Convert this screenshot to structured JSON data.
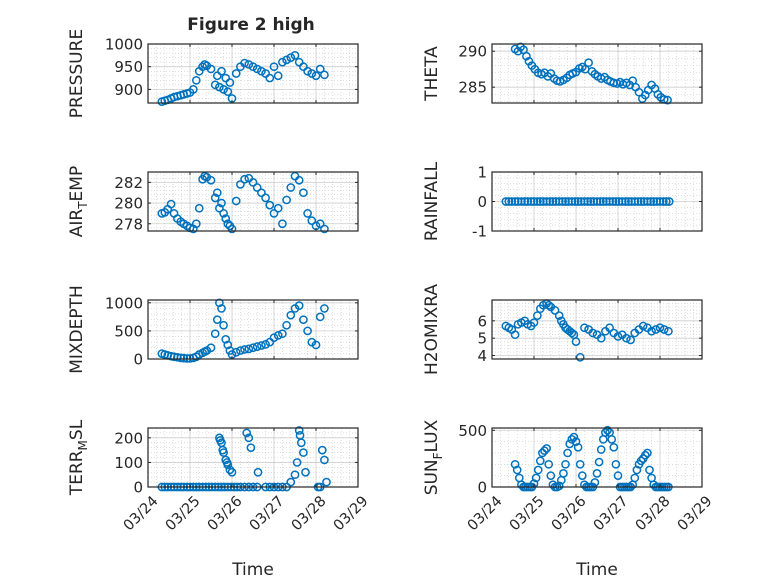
{
  "figure": {
    "title": "Figure 2 high",
    "colors": {
      "marker": "#0072BD",
      "axis": "#262626",
      "grid": "#b9b9b9",
      "background": "#ffffff"
    },
    "marker_shape": "open-circle"
  },
  "chart_data": [
    {
      "type": "scatter",
      "ylabel": "PRESSURE",
      "xlabel": "",
      "xlim": [
        0,
        5
      ],
      "ylim": [
        870,
        1000
      ],
      "yticks": [
        900,
        950,
        1000
      ],
      "ytick_labels": [
        "900",
        "950",
        "1000"
      ],
      "xticks": [
        0,
        1,
        2,
        3,
        4,
        5
      ],
      "xtick_labels": [],
      "grid": true,
      "x": [
        0.33,
        0.4,
        0.47,
        0.55,
        0.62,
        0.7,
        0.78,
        0.85,
        0.93,
        1.0,
        1.08,
        1.15,
        1.22,
        1.3,
        1.35,
        1.4,
        1.5,
        1.6,
        1.65,
        1.7,
        1.75,
        1.8,
        1.85,
        1.9,
        1.95,
        2.0,
        2.1,
        2.2,
        2.3,
        2.4,
        2.5,
        2.6,
        2.7,
        2.8,
        2.9,
        3.0,
        3.1,
        3.2,
        3.3,
        3.4,
        3.5,
        3.6,
        3.7,
        3.8,
        3.9,
        4.0,
        4.1,
        4.2
      ],
      "y": [
        873,
        875,
        877,
        880,
        883,
        885,
        887,
        889,
        891,
        893,
        900,
        920,
        940,
        950,
        955,
        952,
        945,
        910,
        930,
        905,
        940,
        900,
        925,
        895,
        915,
        880,
        935,
        950,
        958,
        955,
        950,
        945,
        940,
        935,
        925,
        950,
        930,
        960,
        965,
        970,
        975,
        960,
        950,
        940,
        935,
        930,
        945,
        932
      ]
    },
    {
      "type": "scatter",
      "ylabel": "THETA",
      "xlabel": "",
      "xlim": [
        0,
        5
      ],
      "ylim": [
        282.8,
        291
      ],
      "yticks": [
        285,
        290
      ],
      "ytick_labels": [
        "285",
        "290"
      ],
      "xticks": [
        0,
        1,
        2,
        3,
        4,
        5
      ],
      "xtick_labels": [],
      "grid": true,
      "x": [
        0.55,
        0.62,
        0.68,
        0.75,
        0.82,
        0.88,
        0.95,
        1.02,
        1.1,
        1.18,
        1.25,
        1.33,
        1.4,
        1.48,
        1.55,
        1.62,
        1.7,
        1.78,
        1.85,
        1.92,
        2.0,
        2.08,
        2.15,
        2.22,
        2.3,
        2.38,
        2.45,
        2.52,
        2.6,
        2.68,
        2.75,
        2.82,
        2.9,
        2.98,
        3.05,
        3.12,
        3.2,
        3.28,
        3.35,
        3.42,
        3.5,
        3.58,
        3.65,
        3.72,
        3.8,
        3.88,
        3.95,
        4.02,
        4.1,
        4.18
      ],
      "y": [
        290.3,
        290.0,
        290.6,
        290.2,
        289.3,
        288.6,
        288.0,
        287.5,
        287.0,
        286.8,
        287.0,
        286.5,
        286.9,
        286.2,
        285.9,
        285.8,
        286.0,
        286.3,
        286.7,
        286.9,
        287.1,
        287.6,
        287.8,
        287.5,
        288.4,
        287.2,
        286.8,
        286.5,
        286.2,
        286.4,
        286.0,
        285.8,
        285.6,
        285.5,
        285.7,
        285.4,
        285.6,
        285.3,
        285.9,
        285.0,
        284.3,
        283.4,
        283.9,
        284.6,
        285.3,
        284.8,
        284.0,
        283.6,
        283.3,
        283.2
      ]
    },
    {
      "type": "scatter",
      "ylabel": "AIR_TEMP",
      "xlabel": "",
      "xlim": [
        0,
        5
      ],
      "ylim": [
        277.3,
        283
      ],
      "yticks": [
        278,
        280,
        282
      ],
      "ytick_labels": [
        "278",
        "280",
        "282"
      ],
      "xticks": [
        0,
        1,
        2,
        3,
        4,
        5
      ],
      "xtick_labels": [],
      "grid": true,
      "x": [
        0.33,
        0.4,
        0.47,
        0.55,
        0.62,
        0.7,
        0.78,
        0.85,
        0.93,
        1.0,
        1.08,
        1.15,
        1.22,
        1.3,
        1.35,
        1.4,
        1.5,
        1.6,
        1.65,
        1.7,
        1.75,
        1.8,
        1.85,
        1.9,
        1.95,
        2.0,
        2.1,
        2.2,
        2.3,
        2.4,
        2.5,
        2.6,
        2.7,
        2.8,
        2.9,
        3.0,
        3.1,
        3.2,
        3.3,
        3.4,
        3.5,
        3.6,
        3.7,
        3.8,
        3.9,
        4.0,
        4.1,
        4.2
      ],
      "y": [
        279.0,
        279.1,
        279.4,
        279.9,
        279.0,
        278.5,
        278.2,
        278.0,
        277.8,
        277.6,
        277.5,
        278.0,
        279.5,
        282.3,
        282.6,
        282.5,
        282.2,
        280.5,
        281.0,
        279.5,
        280.0,
        279.0,
        278.5,
        278.0,
        277.8,
        277.5,
        280.2,
        281.8,
        282.3,
        282.4,
        282.0,
        281.5,
        281.0,
        280.5,
        279.8,
        279.0,
        279.5,
        278.0,
        280.3,
        281.5,
        282.6,
        282.2,
        281.0,
        279.0,
        278.3,
        277.8,
        278.0,
        277.5
      ]
    },
    {
      "type": "scatter",
      "ylabel": "RAINFALL",
      "xlabel": "",
      "xlim": [
        0,
        5
      ],
      "ylim": [
        -1,
        1
      ],
      "yticks": [
        -1,
        0,
        1
      ],
      "ytick_labels": [
        "-1",
        "0",
        "1"
      ],
      "xticks": [
        0,
        1,
        2,
        3,
        4,
        5
      ],
      "xtick_labels": [],
      "grid": true,
      "x": [
        0.33,
        0.4,
        0.47,
        0.55,
        0.62,
        0.7,
        0.78,
        0.85,
        0.93,
        1.0,
        1.08,
        1.15,
        1.22,
        1.3,
        1.38,
        1.45,
        1.52,
        1.6,
        1.68,
        1.75,
        1.82,
        1.9,
        1.98,
        2.05,
        2.12,
        2.2,
        2.28,
        2.35,
        2.42,
        2.5,
        2.58,
        2.65,
        2.72,
        2.8,
        2.88,
        2.95,
        3.02,
        3.1,
        3.18,
        3.25,
        3.32,
        3.4,
        3.48,
        3.55,
        3.62,
        3.7,
        3.78,
        3.85,
        3.92,
        4.0,
        4.08,
        4.15,
        4.22
      ],
      "y": [
        0,
        0,
        0,
        0,
        0,
        0,
        0,
        0,
        0,
        0,
        0,
        0,
        0,
        0,
        0,
        0,
        0,
        0,
        0,
        0,
        0,
        0,
        0,
        0,
        0,
        0,
        0,
        0,
        0,
        0,
        0,
        0,
        0,
        0,
        0,
        0,
        0,
        0,
        0,
        0,
        0,
        0,
        0,
        0,
        0,
        0,
        0,
        0,
        0,
        0,
        0,
        0,
        0
      ]
    },
    {
      "type": "scatter",
      "ylabel": "MIXDEPTH",
      "xlabel": "",
      "xlim": [
        0,
        5
      ],
      "ylim": [
        0,
        1050
      ],
      "yticks": [
        0,
        500,
        1000
      ],
      "ytick_labels": [
        "0",
        "500",
        "1000"
      ],
      "xticks": [
        0,
        1,
        2,
        3,
        4,
        5
      ],
      "xtick_labels": [],
      "grid": true,
      "x": [
        0.33,
        0.4,
        0.47,
        0.55,
        0.62,
        0.7,
        0.78,
        0.85,
        0.93,
        1.0,
        1.08,
        1.15,
        1.22,
        1.3,
        1.35,
        1.4,
        1.5,
        1.6,
        1.65,
        1.7,
        1.75,
        1.8,
        1.85,
        1.9,
        1.95,
        2.0,
        2.1,
        2.2,
        2.3,
        2.4,
        2.5,
        2.6,
        2.7,
        2.8,
        2.9,
        3.0,
        3.1,
        3.2,
        3.3,
        3.4,
        3.5,
        3.6,
        3.7,
        3.8,
        3.9,
        4.0,
        4.1,
        4.2
      ],
      "y": [
        95,
        80,
        65,
        50,
        40,
        30,
        20,
        15,
        10,
        10,
        20,
        40,
        80,
        110,
        130,
        150,
        200,
        450,
        700,
        1000,
        900,
        600,
        350,
        250,
        150,
        80,
        120,
        150,
        170,
        180,
        200,
        220,
        240,
        260,
        300,
        380,
        420,
        450,
        600,
        780,
        900,
        950,
        700,
        500,
        300,
        250,
        750,
        900
      ]
    },
    {
      "type": "scatter",
      "ylabel": "H2OMIXRA",
      "xlabel": "",
      "xlim": [
        0,
        5
      ],
      "ylim": [
        3.8,
        7.2
      ],
      "yticks": [
        4,
        5,
        6
      ],
      "ytick_labels": [
        "4",
        "5",
        "6"
      ],
      "xticks": [
        0,
        1,
        2,
        3,
        4,
        5
      ],
      "xtick_labels": [],
      "grid": true,
      "x": [
        0.33,
        0.4,
        0.47,
        0.55,
        0.62,
        0.7,
        0.78,
        0.85,
        0.93,
        1.0,
        1.08,
        1.15,
        1.22,
        1.3,
        1.35,
        1.4,
        1.5,
        1.6,
        1.65,
        1.7,
        1.75,
        1.8,
        1.85,
        1.9,
        1.95,
        2.0,
        2.1,
        2.2,
        2.3,
        2.4,
        2.5,
        2.6,
        2.7,
        2.8,
        2.9,
        3.0,
        3.1,
        3.2,
        3.3,
        3.4,
        3.5,
        3.6,
        3.7,
        3.8,
        3.9,
        4.0,
        4.1,
        4.2
      ],
      "y": [
        5.7,
        5.6,
        5.5,
        5.2,
        5.8,
        5.9,
        6.0,
        5.8,
        5.7,
        5.9,
        6.3,
        6.7,
        6.9,
        7.0,
        6.9,
        6.8,
        6.6,
        6.3,
        6.0,
        5.8,
        5.6,
        5.5,
        5.4,
        5.3,
        5.2,
        4.8,
        3.9,
        5.6,
        5.5,
        5.3,
        5.2,
        5.0,
        5.4,
        5.6,
        5.3,
        5.1,
        5.2,
        5.0,
        4.9,
        5.3,
        5.5,
        5.7,
        5.6,
        5.4,
        5.5,
        5.6,
        5.5,
        5.4
      ]
    },
    {
      "type": "scatter",
      "ylabel": "TERR_MSL",
      "xlabel": "Time",
      "xlim": [
        0,
        5
      ],
      "ylim": [
        0,
        240
      ],
      "yticks": [
        0,
        100,
        200
      ],
      "ytick_labels": [
        "0",
        "100",
        "200"
      ],
      "xticks": [
        0,
        1,
        2,
        3,
        4,
        5
      ],
      "xtick_labels": [
        "03/24",
        "03/25",
        "03/26",
        "03/27",
        "03/28",
        "03/29"
      ],
      "grid": true,
      "x": [
        0.33,
        0.4,
        0.47,
        0.55,
        0.62,
        0.7,
        0.78,
        0.85,
        0.93,
        1.0,
        1.08,
        1.15,
        1.22,
        1.3,
        1.38,
        1.45,
        1.52,
        1.6,
        1.68,
        1.75,
        1.82,
        1.9,
        1.98,
        2.05,
        2.12,
        1.7,
        1.75,
        1.8,
        1.85,
        1.9,
        1.95,
        2.0,
        1.72,
        1.78,
        1.88,
        2.2,
        2.3,
        2.4,
        2.5,
        2.6,
        2.35,
        2.4,
        2.45,
        2.62,
        2.8,
        2.9,
        3.0,
        3.1,
        3.2,
        3.3,
        3.4,
        3.5,
        3.55,
        3.6,
        3.62,
        3.65,
        3.7,
        3.75,
        4.05,
        4.1,
        4.15,
        4.2,
        4.25
      ],
      "y": [
        0,
        0,
        0,
        0,
        0,
        0,
        0,
        0,
        0,
        0,
        0,
        0,
        0,
        0,
        0,
        0,
        0,
        0,
        0,
        0,
        0,
        0,
        0,
        0,
        0,
        200,
        180,
        140,
        110,
        90,
        70,
        60,
        190,
        150,
        100,
        0,
        0,
        0,
        0,
        0,
        220,
        200,
        160,
        60,
        0,
        0,
        0,
        0,
        0,
        0,
        20,
        50,
        100,
        230,
        210,
        180,
        140,
        60,
        0,
        0,
        150,
        110,
        20
      ]
    },
    {
      "type": "scatter",
      "ylabel": "SUN_FLUX",
      "xlabel": "Time",
      "xlim": [
        0,
        5
      ],
      "ylim": [
        0,
        520
      ],
      "yticks": [
        0,
        500
      ],
      "ytick_labels": [
        "0",
        "500"
      ],
      "xticks": [
        0,
        1,
        2,
        3,
        4,
        5
      ],
      "xtick_labels": [
        "03/24",
        "03/25",
        "03/26",
        "03/27",
        "03/28",
        "03/29"
      ],
      "grid": true,
      "x": [
        0.55,
        0.6,
        0.65,
        0.7,
        0.75,
        0.8,
        0.85,
        0.9,
        0.95,
        1.0,
        1.05,
        1.1,
        1.15,
        1.2,
        1.25,
        1.3,
        1.35,
        1.4,
        1.45,
        1.5,
        1.55,
        1.6,
        1.65,
        1.7,
        1.75,
        1.8,
        1.85,
        1.9,
        1.95,
        2.0,
        2.05,
        2.1,
        2.15,
        2.2,
        2.25,
        2.3,
        2.35,
        2.4,
        2.45,
        2.5,
        2.55,
        2.6,
        2.65,
        2.7,
        2.75,
        2.8,
        2.85,
        2.9,
        2.95,
        3.0,
        3.05,
        3.1,
        3.15,
        3.2,
        3.25,
        3.3,
        3.35,
        3.4,
        3.45,
        3.5,
        3.55,
        3.6,
        3.65,
        3.7,
        3.75,
        3.8,
        3.85,
        3.9,
        3.95,
        4.0,
        4.05,
        4.1,
        4.15,
        4.2
      ],
      "y": [
        200,
        150,
        80,
        20,
        0,
        0,
        0,
        0,
        0,
        30,
        80,
        150,
        230,
        300,
        320,
        340,
        200,
        100,
        20,
        0,
        0,
        10,
        60,
        120,
        200,
        300,
        380,
        420,
        440,
        400,
        350,
        200,
        100,
        20,
        0,
        0,
        0,
        0,
        40,
        120,
        220,
        330,
        420,
        480,
        500,
        480,
        420,
        350,
        200,
        100,
        0,
        0,
        0,
        0,
        0,
        0,
        20,
        80,
        150,
        200,
        230,
        250,
        280,
        300,
        150,
        80,
        20,
        0,
        0,
        0,
        0,
        0,
        0,
        0
      ]
    }
  ]
}
